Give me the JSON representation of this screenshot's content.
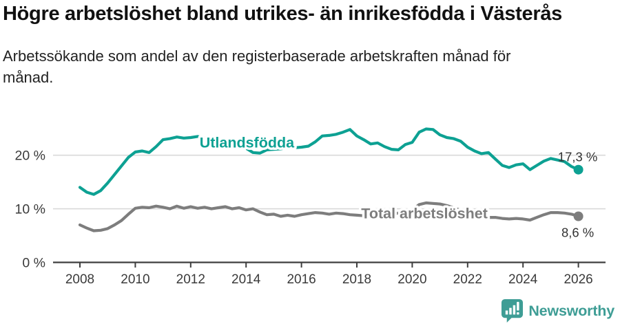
{
  "header": {
    "title": "Högre arbetslöshet bland utrikes- än inrikesfödda i Västerås",
    "subtitle": "Arbetssökande som andel av den registerbaserade arbetskraften månad för månad."
  },
  "footer": {
    "brand": "Newsworthy",
    "logo_icon": "bar-chart-speech-bubble-icon"
  },
  "colors": {
    "accent_teal": "#0da193",
    "series_gray": "#7d7d7d",
    "grid": "#d9d9d9",
    "axis": "#3d3d3d",
    "tick_text": "#3a3a3a",
    "value_text": "#333333",
    "logo_teal": "#3e9d95"
  },
  "chart_data": {
    "type": "line",
    "title": "Högre arbetslöshet bland utrikes- än inrikesfödda i Västerås",
    "subtitle": "Arbetssökande som andel av den registerbaserade arbetskraften månad för månad.",
    "x_unit": "year (quarterly samples of monthly series)",
    "ylim": [
      0,
      26
    ],
    "xlim": [
      2007.75,
      2027
    ],
    "grid": "horizontal",
    "xticks": [
      2008,
      2010,
      2012,
      2014,
      2016,
      2018,
      2020,
      2022,
      2024,
      2026
    ],
    "yticks": [
      {
        "value": 0,
        "label": "0 %"
      },
      {
        "value": 10,
        "label": "10 %"
      },
      {
        "value": 20,
        "label": "20 %"
      }
    ],
    "x": [
      2008,
      2008.25,
      2008.5,
      2008.75,
      2009,
      2009.25,
      2009.5,
      2009.75,
      2010,
      2010.25,
      2010.5,
      2010.75,
      2011,
      2011.25,
      2011.5,
      2011.75,
      2012,
      2012.25,
      2012.5,
      2012.75,
      2013,
      2013.25,
      2013.5,
      2013.75,
      2014,
      2014.25,
      2014.5,
      2014.75,
      2015,
      2015.25,
      2015.5,
      2015.75,
      2016,
      2016.25,
      2016.5,
      2016.75,
      2017,
      2017.25,
      2017.5,
      2017.75,
      2018,
      2018.25,
      2018.5,
      2018.75,
      2019,
      2019.25,
      2019.5,
      2019.75,
      2020,
      2020.25,
      2020.5,
      2020.75,
      2021,
      2021.25,
      2021.5,
      2021.75,
      2022,
      2022.25,
      2022.5,
      2022.75,
      2023,
      2023.25,
      2023.5,
      2023.75,
      2024,
      2024.25,
      2024.5,
      2024.75,
      2025,
      2025.25,
      2025.5,
      2025.75,
      2026
    ],
    "series": [
      {
        "name": "Utlandsfödda",
        "color_key": "accent_teal",
        "end_value_label": "17,3 %",
        "end_label_side": "above",
        "inline_label": {
          "x": 2014.03,
          "y": 22.4
        },
        "values": [
          14.0,
          13.1,
          12.7,
          13.4,
          14.8,
          16.4,
          18.0,
          19.6,
          20.6,
          20.8,
          20.5,
          21.6,
          22.9,
          23.1,
          23.4,
          23.2,
          23.3,
          23.5,
          23.2,
          23.0,
          22.8,
          22.5,
          22.2,
          21.8,
          21.3,
          20.5,
          20.4,
          21.0,
          21.1,
          21.2,
          21.4,
          21.4,
          21.5,
          21.7,
          22.5,
          23.6,
          23.7,
          23.9,
          24.3,
          24.8,
          23.6,
          22.9,
          22.1,
          22.3,
          21.6,
          21.1,
          21.0,
          22.0,
          22.4,
          24.3,
          24.9,
          24.8,
          23.8,
          23.3,
          23.1,
          22.6,
          21.5,
          20.8,
          20.3,
          20.5,
          19.3,
          18.1,
          17.7,
          18.2,
          18.4,
          17.3,
          18.1,
          18.9,
          19.4,
          19.1,
          18.8,
          17.9,
          17.3
        ]
      },
      {
        "name": "Total arbetslöshet",
        "color_key": "series_gray",
        "end_value_label": "8,6 %",
        "end_label_side": "below",
        "inline_label": {
          "x": 2020.44,
          "y": 9.2
        },
        "values": [
          7.0,
          6.4,
          5.9,
          6.0,
          6.3,
          7.0,
          7.8,
          9.0,
          10.1,
          10.3,
          10.2,
          10.5,
          10.3,
          10.0,
          10.5,
          10.1,
          10.4,
          10.1,
          10.3,
          10.0,
          10.2,
          10.4,
          10.0,
          10.2,
          9.8,
          10.0,
          9.4,
          8.9,
          9.0,
          8.6,
          8.8,
          8.6,
          8.9,
          9.1,
          9.3,
          9.2,
          9.0,
          9.2,
          9.1,
          8.9,
          8.8,
          8.7,
          8.9,
          8.8,
          8.9,
          9.0,
          9.2,
          9.4,
          9.8,
          10.8,
          11.1,
          11.0,
          10.9,
          10.6,
          10.2,
          9.7,
          9.2,
          8.8,
          8.7,
          8.4,
          8.4,
          8.2,
          8.1,
          8.2,
          8.1,
          7.9,
          8.4,
          8.9,
          9.3,
          9.3,
          9.2,
          9.0,
          8.6
        ]
      }
    ],
    "legend_position": "inline-labels-on-lines"
  }
}
